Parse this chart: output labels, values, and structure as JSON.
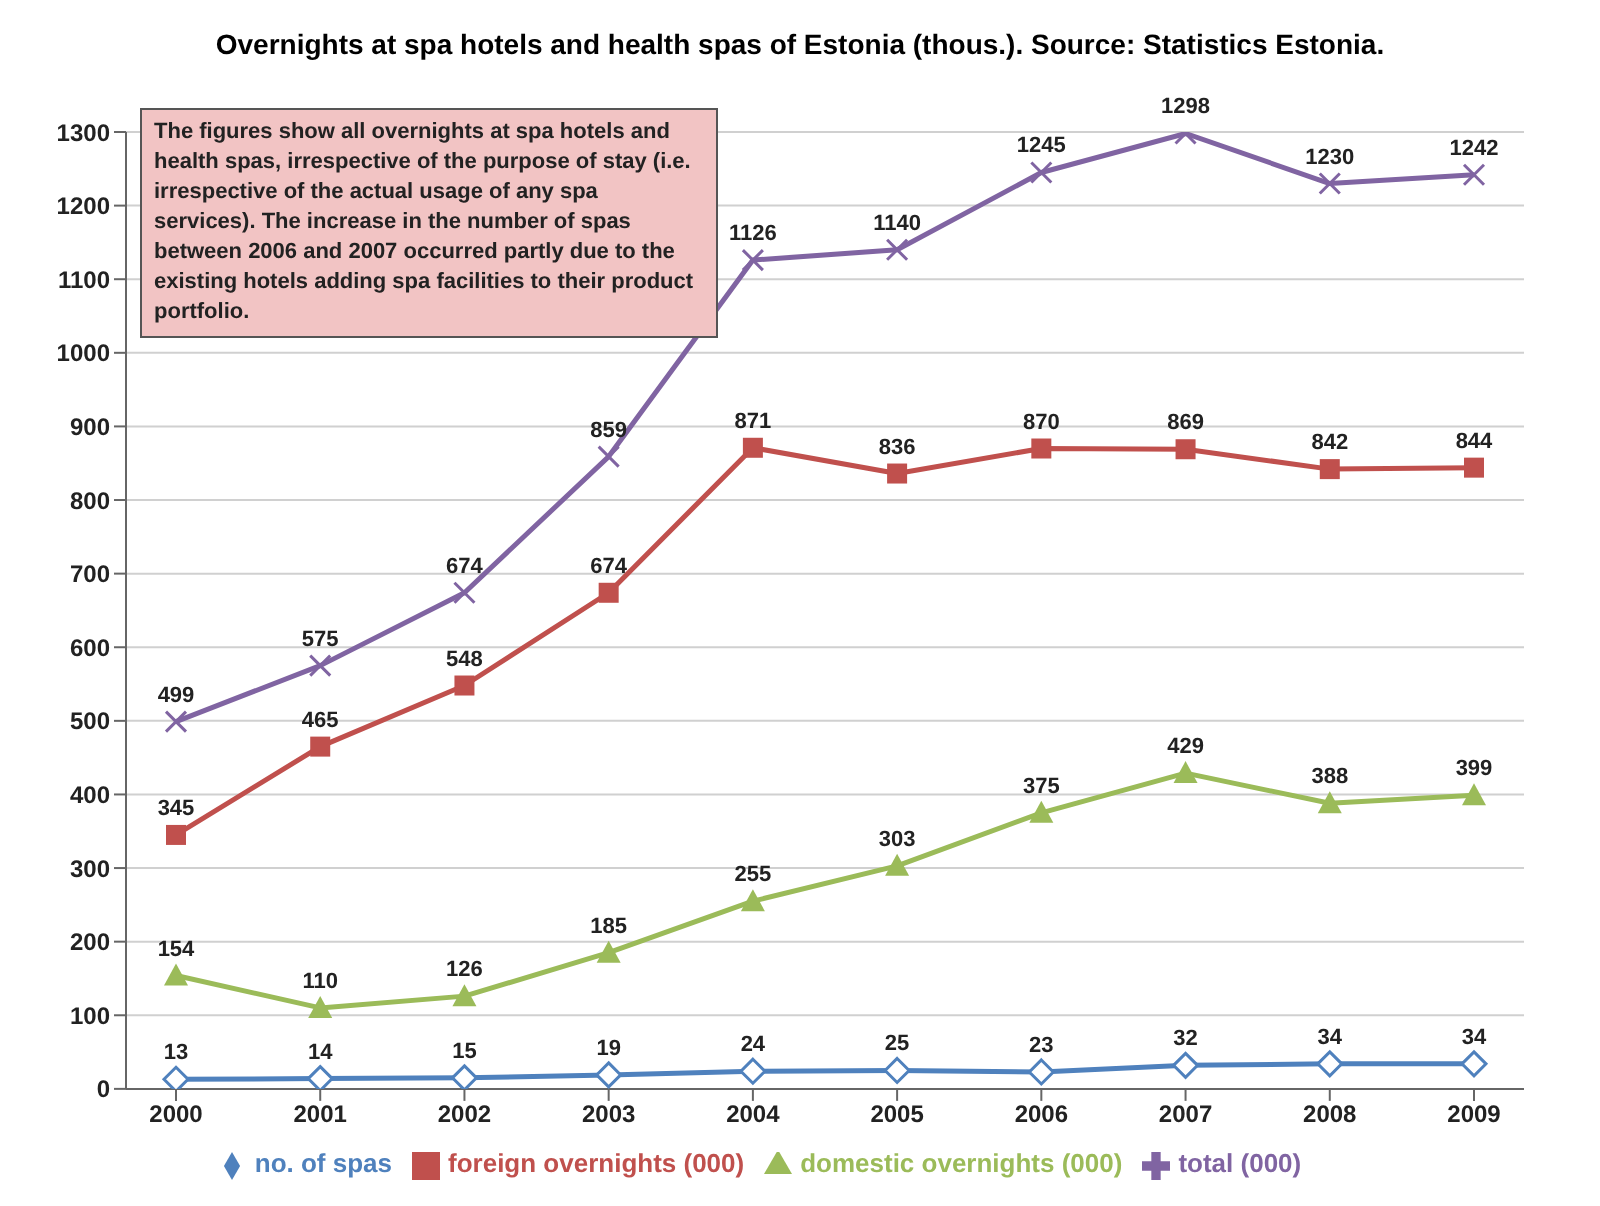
{
  "chart_data": {
    "type": "line",
    "title": "Overnights at spa hotels and health spas of Estonia (thous.). Source: Statistics Estonia.",
    "annotations": [
      "The figures show all overnights at spa hotels and health spas, irrespective of the purpose of stay (i.e. irrespective of the actual usage of any spa services). The increase in the number of spas between 2006 and 2007 occurred partly due to the existing hotels adding spa facilities to their product portfolio."
    ],
    "categories": [
      "2000",
      "2001",
      "2002",
      "2003",
      "2004",
      "2005",
      "2006",
      "2007",
      "2008",
      "2009"
    ],
    "series": [
      {
        "name": "no. of spas",
        "color": "#4f81bd",
        "marker": "diamond",
        "values": [
          13,
          14,
          15,
          19,
          24,
          25,
          23,
          32,
          34,
          34
        ]
      },
      {
        "name": "foreign overnights (000)",
        "color": "#c0504d",
        "marker": "square",
        "values": [
          345,
          465,
          548,
          674,
          871,
          836,
          870,
          869,
          842,
          844
        ]
      },
      {
        "name": "domestic overnights (000)",
        "color": "#9bbb59",
        "marker": "triangle",
        "values": [
          154,
          110,
          126,
          185,
          255,
          303,
          375,
          429,
          388,
          399
        ]
      },
      {
        "name": "total (000)",
        "color": "#8064a2",
        "marker": "cross",
        "values": [
          499,
          575,
          674,
          859,
          1126,
          1140,
          1245,
          1298,
          1230,
          1242
        ]
      }
    ],
    "ylim": [
      0,
      1300
    ],
    "yticks": [
      0,
      100,
      200,
      300,
      400,
      500,
      600,
      700,
      800,
      900,
      1000,
      1100,
      1200,
      1300
    ],
    "grid": "y",
    "legend": "bottom",
    "data_labels": true,
    "line_style": "solid"
  }
}
